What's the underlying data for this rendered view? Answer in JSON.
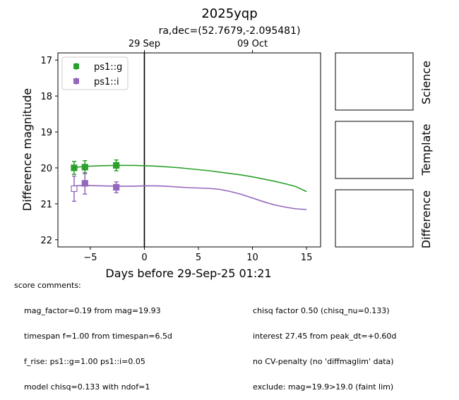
{
  "title": "2025yqp",
  "subtitle": "ra,dec=(52.7679,-2.095481)",
  "chart_data": {
    "type": "scatter",
    "xlabel": "Days before 29-Sep-25 01:21",
    "ylabel": "Difference magnitude",
    "xlim": [
      -8.0,
      16.3
    ],
    "ylim": [
      22.2,
      16.8
    ],
    "y_inverted": true,
    "xticks": [
      -5,
      0,
      5,
      10,
      15
    ],
    "xtick_labels": [
      "−5",
      "0",
      "5",
      "10",
      "15"
    ],
    "yticks": [
      17,
      18,
      19,
      20,
      21,
      22
    ],
    "ytick_labels": [
      "17",
      "18",
      "19",
      "20",
      "21",
      "22"
    ],
    "top_axis_ticks": [
      {
        "x": 0,
        "label": "29 Sep"
      },
      {
        "x": 10,
        "label": "09 Oct"
      }
    ],
    "vertical_line_x": 0,
    "legend_placement": "top-left",
    "series": [
      {
        "name": "ps1::g",
        "color": "#2ca02c",
        "points": [
          {
            "x": -6.5,
            "y": 20.0,
            "err": 0.18,
            "filled": true
          },
          {
            "x": -5.5,
            "y": 19.98,
            "err": 0.18,
            "filled": true
          },
          {
            "x": -2.6,
            "y": 19.93,
            "err": 0.15,
            "filled": true
          }
        ],
        "model": [
          [
            -6.5,
            19.99
          ],
          [
            -5.5,
            19.96
          ],
          [
            -4,
            19.94
          ],
          [
            -2.6,
            19.93
          ],
          [
            -1,
            19.93
          ],
          [
            0,
            19.94
          ],
          [
            1,
            19.95
          ],
          [
            2,
            19.97
          ],
          [
            3,
            19.99
          ],
          [
            4,
            20.02
          ],
          [
            5,
            20.05
          ],
          [
            6,
            20.08
          ],
          [
            7,
            20.12
          ],
          [
            8,
            20.16
          ],
          [
            9,
            20.2
          ],
          [
            10,
            20.25
          ],
          [
            11,
            20.31
          ],
          [
            12,
            20.37
          ],
          [
            13,
            20.44
          ],
          [
            14,
            20.52
          ],
          [
            15,
            20.66
          ]
        ]
      },
      {
        "name": "ps1::i",
        "color": "#9467bd",
        "points": [
          {
            "x": -6.5,
            "y": 20.58,
            "err": 0.35,
            "filled": false
          },
          {
            "x": -5.5,
            "y": 20.43,
            "err": 0.3,
            "filled": true
          },
          {
            "x": -2.6,
            "y": 20.54,
            "err": 0.15,
            "filled": true
          }
        ],
        "model": [
          [
            -6.5,
            20.5
          ],
          [
            -5.5,
            20.49
          ],
          [
            -4,
            20.5
          ],
          [
            -2.6,
            20.51
          ],
          [
            -1,
            20.51
          ],
          [
            0,
            20.5
          ],
          [
            1,
            20.5
          ],
          [
            2,
            20.51
          ],
          [
            3,
            20.53
          ],
          [
            4,
            20.55
          ],
          [
            5,
            20.56
          ],
          [
            6,
            20.57
          ],
          [
            7,
            20.6
          ],
          [
            8,
            20.66
          ],
          [
            9,
            20.74
          ],
          [
            10,
            20.84
          ],
          [
            11,
            20.94
          ],
          [
            12,
            21.03
          ],
          [
            13,
            21.09
          ],
          [
            14,
            21.14
          ],
          [
            15,
            21.16
          ]
        ]
      }
    ]
  },
  "panels": [
    {
      "label": "Science"
    },
    {
      "label": "Template"
    },
    {
      "label": "Difference"
    }
  ],
  "score_comments": {
    "heading": "score comments:",
    "left": [
      "mag_factor=0.19 from mag=19.93",
      "timespan f=1.00 from timespan=6.5d",
      "f_rise: ps1::g=1.00 ps1::i=0.05",
      "model chisq=0.133 with ndof=1"
    ],
    "right": [
      "chisq factor 0.50 (chisq_nu=0.133)",
      "interest 27.45 from peak_dt=+0.60d",
      "no CV-penalty (no 'diffmaglim' data)",
      "exclude: mag=19.9>19.0 (faint lim)"
    ]
  }
}
